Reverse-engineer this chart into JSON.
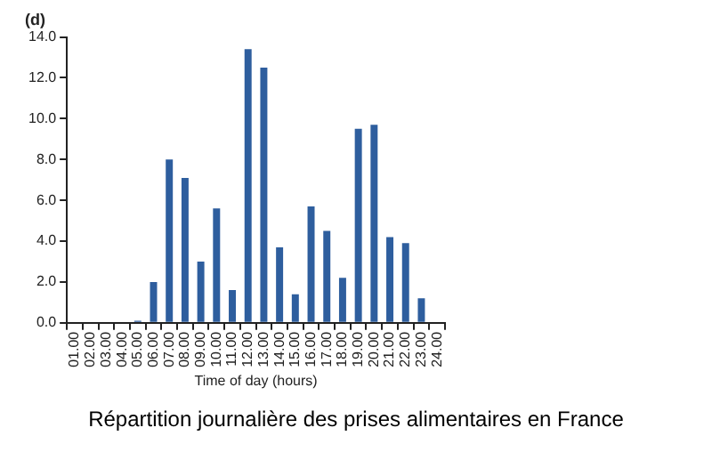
{
  "chart_data": {
    "type": "bar",
    "title": "(d)",
    "xlabel": "Time of day (hours)",
    "categories": [
      "01.00",
      "02.00",
      "03.00",
      "04.00",
      "05.00",
      "06.00",
      "07.00",
      "08.00",
      "09.00",
      "10.00",
      "11.00",
      "12.00",
      "13.00",
      "14.00",
      "15.00",
      "16.00",
      "17.00",
      "18.00",
      "19.00",
      "20.00",
      "21.00",
      "22.00",
      "23.00",
      "24.00"
    ],
    "values": [
      0,
      0,
      0,
      0,
      0.1,
      2.0,
      8.0,
      7.1,
      3.0,
      5.6,
      1.6,
      13.4,
      12.5,
      3.7,
      1.4,
      5.7,
      4.5,
      2.2,
      9.5,
      9.7,
      4.2,
      3.9,
      1.2,
      0
    ],
    "color": "#2e5e9e",
    "ylim": [
      0,
      14
    ],
    "yticks": [
      {
        "value": 0,
        "label": "0.0"
      },
      {
        "value": 2,
        "label": "2.0"
      },
      {
        "value": 4,
        "label": "4.0"
      },
      {
        "value": 6,
        "label": "6.0"
      },
      {
        "value": 8,
        "label": "8.0"
      },
      {
        "value": 10,
        "label": "10.0"
      },
      {
        "value": 12,
        "label": "12.0"
      },
      {
        "value": 14,
        "label": "14.0"
      }
    ],
    "grid": false,
    "legend": false,
    "annotations": [
      "Répartition journalière des prises alimentaires en France"
    ]
  }
}
